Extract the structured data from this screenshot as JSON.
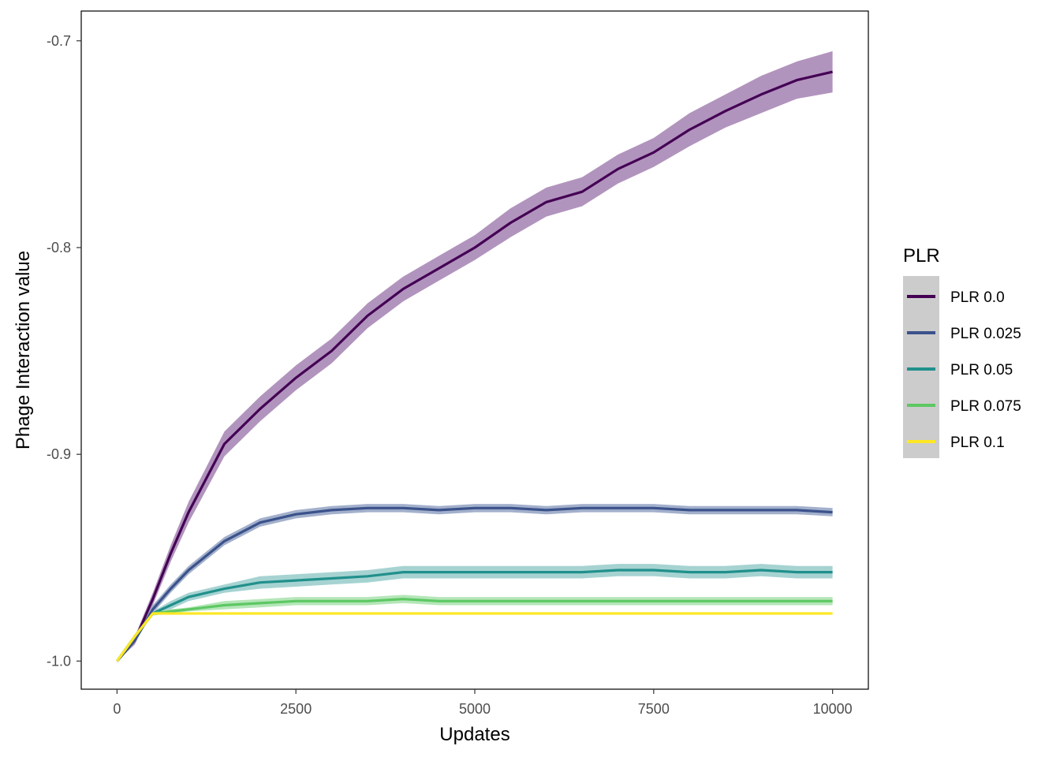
{
  "chart_data": {
    "type": "line",
    "xlabel": "Updates",
    "ylabel": "Phage Interaction value",
    "xlim": [
      -500,
      10500
    ],
    "ylim": [
      -1.0136,
      -0.6856
    ],
    "x_ticks": [
      0,
      2500,
      5000,
      7500,
      10000
    ],
    "x_tick_labels": [
      "0",
      "2500",
      "5000",
      "7500",
      "10000"
    ],
    "y_ticks": [
      -1.0,
      -0.9,
      -0.8,
      -0.7
    ],
    "y_tick_labels": [
      "-1.0",
      "-0.9",
      "-0.8",
      "-0.7"
    ],
    "grid": false,
    "ribbons": true,
    "legend": {
      "title": "PLR",
      "position": "right"
    },
    "x": [
      0,
      250,
      500,
      750,
      1000,
      1500,
      2000,
      2500,
      3000,
      3500,
      4000,
      4500,
      5000,
      5500,
      6000,
      6500,
      7000,
      7500,
      8000,
      8500,
      9000,
      9500,
      10000
    ],
    "series": [
      {
        "name": "PLR 0.0",
        "color": "#440154",
        "band_color": "#B194BD",
        "values": [
          -1.0,
          -0.99,
          -0.97,
          -0.948,
          -0.928,
          -0.895,
          -0.878,
          -0.863,
          -0.85,
          -0.833,
          -0.82,
          -0.81,
          -0.8,
          -0.788,
          -0.778,
          -0.773,
          -0.762,
          -0.754,
          -0.743,
          -0.734,
          -0.726,
          -0.719,
          -0.715
        ],
        "band": [
          0,
          0.002,
          0.003,
          0.004,
          0.005,
          0.006,
          0.006,
          0.006,
          0.006,
          0.006,
          0.006,
          0.006,
          0.006,
          0.007,
          0.007,
          0.007,
          0.007,
          0.007,
          0.008,
          0.008,
          0.009,
          0.009,
          0.01
        ]
      },
      {
        "name": "PLR 0.025",
        "color": "#3B528B",
        "band_color": "#A3B0CC",
        "values": [
          -1.0,
          -0.99,
          -0.975,
          -0.965,
          -0.956,
          -0.942,
          -0.933,
          -0.929,
          -0.927,
          -0.926,
          -0.926,
          -0.927,
          -0.926,
          -0.926,
          -0.927,
          -0.926,
          -0.926,
          -0.926,
          -0.927,
          -0.927,
          -0.927,
          -0.927,
          -0.928
        ],
        "band": [
          0,
          0.001,
          0.002,
          0.002,
          0.002,
          0.002,
          0.002,
          0.002,
          0.002,
          0.002,
          0.002,
          0.002,
          0.002,
          0.002,
          0.002,
          0.002,
          0.002,
          0.002,
          0.002,
          0.002,
          0.002,
          0.002,
          0.002
        ]
      },
      {
        "name": "PLR 0.05",
        "color": "#21908C",
        "band_color": "#A6D3D2",
        "values": [
          -1.0,
          -0.988,
          -0.977,
          -0.973,
          -0.969,
          -0.965,
          -0.962,
          -0.961,
          -0.96,
          -0.959,
          -0.957,
          -0.957,
          -0.957,
          -0.957,
          -0.957,
          -0.957,
          -0.956,
          -0.956,
          -0.957,
          -0.957,
          -0.956,
          -0.957,
          -0.957
        ],
        "band": [
          0,
          0.001,
          0.001,
          0.002,
          0.002,
          0.002,
          0.003,
          0.003,
          0.003,
          0.003,
          0.003,
          0.003,
          0.003,
          0.003,
          0.003,
          0.003,
          0.003,
          0.003,
          0.003,
          0.003,
          0.003,
          0.003,
          0.003
        ]
      },
      {
        "name": "PLR 0.075",
        "color": "#5DC863",
        "band_color": "#B5E6B8",
        "values": [
          -1.0,
          -0.988,
          -0.977,
          -0.976,
          -0.975,
          -0.973,
          -0.972,
          -0.971,
          -0.971,
          -0.971,
          -0.97,
          -0.971,
          -0.971,
          -0.971,
          -0.971,
          -0.971,
          -0.971,
          -0.971,
          -0.971,
          -0.971,
          -0.971,
          -0.971,
          -0.971
        ],
        "band": [
          0,
          0.001,
          0.001,
          0.001,
          0.001,
          0.002,
          0.002,
          0.002,
          0.002,
          0.002,
          0.002,
          0.002,
          0.002,
          0.002,
          0.002,
          0.002,
          0.002,
          0.002,
          0.002,
          0.002,
          0.002,
          0.002,
          0.002
        ]
      },
      {
        "name": "PLR 0.1",
        "color": "#FDE725",
        "band_color": "#FEF3A0",
        "values": [
          -1.0,
          -0.988,
          -0.977,
          -0.977,
          -0.977,
          -0.977,
          -0.977,
          -0.977,
          -0.977,
          -0.977,
          -0.977,
          -0.977,
          -0.977,
          -0.977,
          -0.977,
          -0.977,
          -0.977,
          -0.977,
          -0.977,
          -0.977,
          -0.977,
          -0.977,
          -0.977
        ],
        "band": [
          0,
          0,
          0.0005,
          0.0005,
          0.0005,
          0.0005,
          0.0005,
          0.0005,
          0.0005,
          0.0005,
          0.0005,
          0.0005,
          0.0005,
          0.0005,
          0.0005,
          0.0005,
          0.0005,
          0.0005,
          0.0005,
          0.0005,
          0.0005,
          0.0005,
          0.0005
        ]
      }
    ]
  }
}
